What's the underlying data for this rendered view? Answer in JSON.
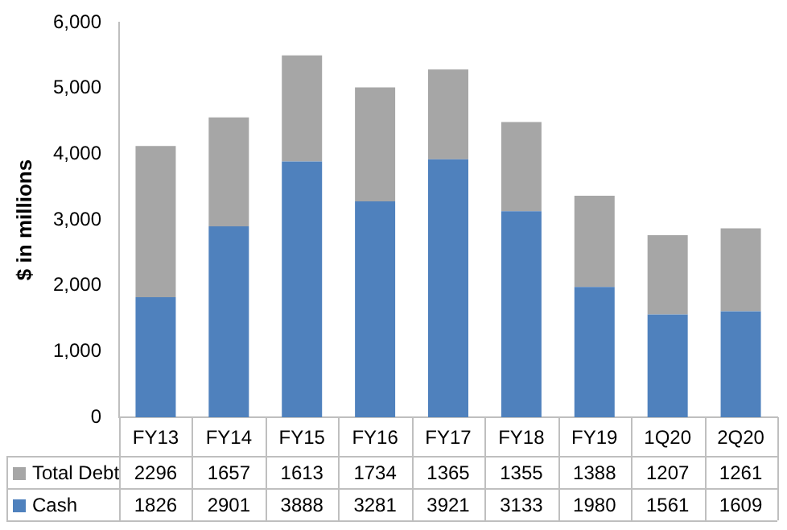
{
  "chart_data": {
    "type": "bar",
    "stacked": true,
    "ylabel": "$ in millions",
    "categories": [
      "FY13",
      "FY14",
      "FY15",
      "FY16",
      "FY17",
      "FY18",
      "FY19",
      "1Q20",
      "2Q20"
    ],
    "series": [
      {
        "name": "Cash",
        "color": "#4f81bd",
        "values": [
          1826,
          2901,
          3888,
          3281,
          3921,
          3133,
          1980,
          1561,
          1609
        ]
      },
      {
        "name": "Total Debt",
        "color": "#a6a6a6",
        "values": [
          2296,
          1657,
          1613,
          1734,
          1365,
          1355,
          1388,
          1207,
          1261
        ]
      }
    ],
    "ylim": [
      0,
      6000
    ],
    "yticks": [
      {
        "value": 0,
        "label": "0"
      },
      {
        "value": 1000,
        "label": "1,000"
      },
      {
        "value": 2000,
        "label": "2,000"
      },
      {
        "value": 3000,
        "label": "3,000"
      },
      {
        "value": 4000,
        "label": "4,000"
      },
      {
        "value": 5000,
        "label": "5,000"
      },
      {
        "value": 6000,
        "label": "6,000"
      }
    ],
    "data_labels": true,
    "legend": "bottom",
    "grid": false
  }
}
